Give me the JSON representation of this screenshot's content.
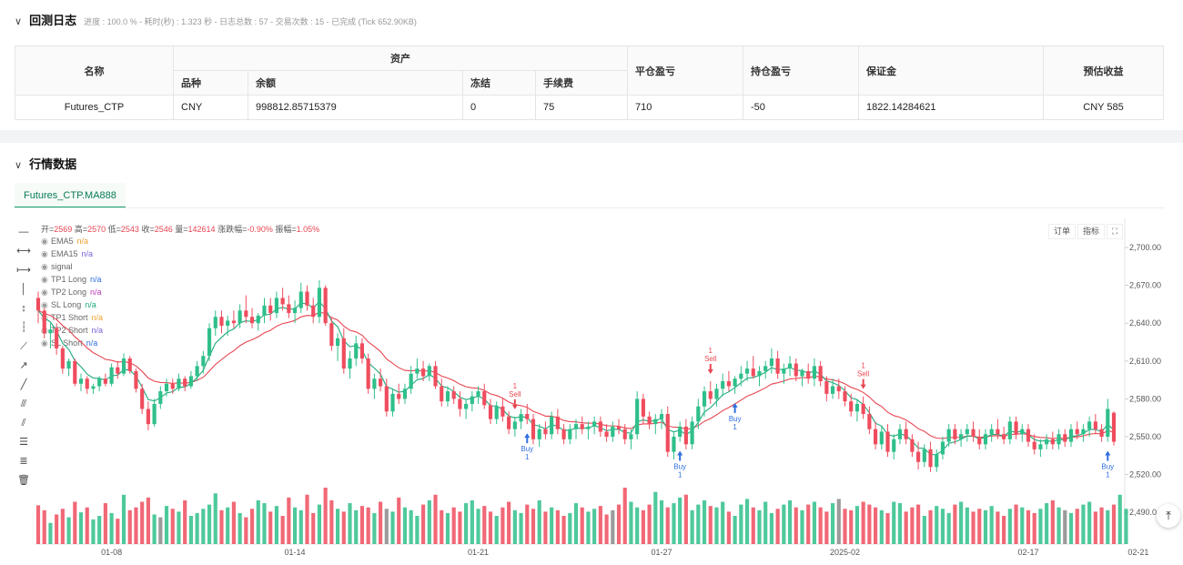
{
  "backtest_log": {
    "title": "回测日志",
    "status": "进度 : 100.0 % - 耗时(秒) : 1.323 秒 - 日志总数 : 57 - 交易次数 : 15 - 已完成 (Tick 652.90KB)",
    "table": {
      "headers": {
        "name": "名称",
        "assets": "资产",
        "variety": "品种",
        "balance": "余额",
        "frozen": "冻结",
        "fee": "手续费",
        "close_pnl": "平仓盈亏",
        "position_pnl": "持仓盈亏",
        "margin": "保证金",
        "est_profit": "预估收益"
      },
      "row": {
        "name": "Futures_CTP",
        "variety": "CNY",
        "balance": "998812.85715379",
        "frozen": "0",
        "fee": "75",
        "close_pnl": "710",
        "position_pnl": "-50",
        "margin": "1822.14284621",
        "est_profit": "CNY 585"
      }
    }
  },
  "market": {
    "title": "行情数据",
    "tab": "Futures_CTP.MA888",
    "ohlc": {
      "open_label": "开=",
      "open": "2569",
      "high_label": "高=",
      "high": "2570",
      "low_label": "低=",
      "low": "2543",
      "close_label": "收=",
      "close": "2546",
      "vol_label": "量=",
      "vol": "142614",
      "chg_label": "涨跌幅=",
      "chg": "-0.90%",
      "amp_label": "振幅=",
      "amp": "1.05%"
    },
    "legend": [
      {
        "name": "EMA5",
        "value": "n/a",
        "color": "#f0a030"
      },
      {
        "name": "EMA15",
        "value": "n/a",
        "color": "#7b5fd8"
      },
      {
        "name": "signal",
        "value": "",
        "color": "#666666"
      },
      {
        "name": "TP1 Long",
        "value": "n/a",
        "color": "#2f6fe0"
      },
      {
        "name": "TP2 Long",
        "value": "n/a",
        "color": "#c03bb8"
      },
      {
        "name": "SL Long",
        "value": "n/a",
        "color": "#1ea97c"
      },
      {
        "name": "TP1 Short",
        "value": "n/a",
        "color": "#f0a030"
      },
      {
        "name": "TP2 Short",
        "value": "n/a",
        "color": "#7b5fd8"
      },
      {
        "name": "SL Short",
        "value": "n/a",
        "color": "#2f6fe0"
      }
    ],
    "buttons": {
      "order": "订单",
      "indicator": "指标",
      "fullscreen": "⛶"
    },
    "tool_icons": [
      "horizontal-line-icon",
      "horizontal-ray-icon",
      "horizontal-segment-icon",
      "vertical-line-icon",
      "vertical-ray-icon",
      "vertical-segment-icon",
      "trend-line-icon",
      "ray-line-icon",
      "segment-line-icon",
      "price-channel-icon",
      "parallel-lines-icon",
      "fib-icon",
      "fib-levels-icon",
      "trash-icon"
    ]
  },
  "chart_data": {
    "type": "candlestick",
    "y_axis_labels": [
      "2,700.00",
      "2,670.00",
      "2,640.00",
      "2,610.00",
      "2,580.00",
      "2,550.00",
      "2,520.00",
      "2,490.0"
    ],
    "y_ticks": [
      2700,
      2670,
      2640,
      2610,
      2580,
      2550,
      2520,
      2490
    ],
    "ylim": [
      2480,
      2722
    ],
    "x_labels": [
      "01-08",
      "01-14",
      "01-21",
      "01-27",
      "2025-02",
      "02-17",
      "02-21"
    ],
    "x_label_index": [
      12,
      42,
      72,
      102,
      132,
      162,
      180
    ],
    "ema_colors": {
      "ema5": "#1ea97c",
      "ema15": "#e84652"
    },
    "up_color": "#2fbf8a",
    "down_color": "#ef4d5e",
    "neutral_color": "#8a8a8a",
    "candles": [
      [
        2660,
        2665,
        2640,
        2650
      ],
      [
        2650,
        2652,
        2628,
        2632
      ],
      [
        2632,
        2640,
        2620,
        2635
      ],
      [
        2636,
        2640,
        2615,
        2620
      ],
      [
        2620,
        2622,
        2600,
        2604
      ],
      [
        2604,
        2612,
        2598,
        2610
      ],
      [
        2610,
        2612,
        2590,
        2592
      ],
      [
        2592,
        2600,
        2586,
        2596
      ],
      [
        2596,
        2598,
        2584,
        2588
      ],
      [
        2588,
        2592,
        2584,
        2590
      ],
      [
        2590,
        2598,
        2586,
        2596
      ],
      [
        2596,
        2600,
        2590,
        2592
      ],
      [
        2592,
        2608,
        2590,
        2605
      ],
      [
        2605,
        2610,
        2596,
        2600
      ],
      [
        2600,
        2616,
        2598,
        2612
      ],
      [
        2612,
        2614,
        2600,
        2602
      ],
      [
        2602,
        2604,
        2585,
        2588
      ],
      [
        2588,
        2592,
        2568,
        2572
      ],
      [
        2572,
        2578,
        2555,
        2560
      ],
      [
        2560,
        2580,
        2558,
        2576
      ],
      [
        2576,
        2590,
        2572,
        2586
      ],
      [
        2586,
        2596,
        2582,
        2592
      ],
      [
        2592,
        2596,
        2584,
        2588
      ],
      [
        2588,
        2600,
        2586,
        2596
      ],
      [
        2596,
        2598,
        2586,
        2590
      ],
      [
        2590,
        2602,
        2588,
        2598
      ],
      [
        2598,
        2610,
        2594,
        2606
      ],
      [
        2606,
        2618,
        2600,
        2614
      ],
      [
        2614,
        2640,
        2610,
        2636
      ],
      [
        2636,
        2650,
        2630,
        2645
      ],
      [
        2645,
        2650,
        2632,
        2638
      ],
      [
        2638,
        2646,
        2630,
        2642
      ],
      [
        2642,
        2650,
        2636,
        2640
      ],
      [
        2640,
        2655,
        2636,
        2650
      ],
      [
        2650,
        2662,
        2640,
        2645
      ],
      [
        2645,
        2652,
        2636,
        2640
      ],
      [
        2640,
        2648,
        2634,
        2646
      ],
      [
        2646,
        2660,
        2640,
        2654
      ],
      [
        2654,
        2660,
        2642,
        2648
      ],
      [
        2648,
        2665,
        2644,
        2660
      ],
      [
        2660,
        2668,
        2650,
        2655
      ],
      [
        2655,
        2662,
        2644,
        2648
      ],
      [
        2648,
        2658,
        2640,
        2652
      ],
      [
        2652,
        2672,
        2648,
        2665
      ],
      [
        2665,
        2670,
        2650,
        2654
      ],
      [
        2654,
        2660,
        2640,
        2645
      ],
      [
        2645,
        2674,
        2640,
        2668
      ],
      [
        2668,
        2670,
        2638,
        2640
      ],
      [
        2640,
        2644,
        2618,
        2622
      ],
      [
        2622,
        2632,
        2610,
        2628
      ],
      [
        2628,
        2636,
        2600,
        2604
      ],
      [
        2604,
        2618,
        2596,
        2612
      ],
      [
        2612,
        2630,
        2606,
        2624
      ],
      [
        2624,
        2628,
        2608,
        2612
      ],
      [
        2612,
        2616,
        2584,
        2588
      ],
      [
        2588,
        2600,
        2580,
        2596
      ],
      [
        2596,
        2604,
        2586,
        2590
      ],
      [
        2590,
        2596,
        2566,
        2570
      ],
      [
        2570,
        2588,
        2566,
        2584
      ],
      [
        2584,
        2592,
        2576,
        2580
      ],
      [
        2580,
        2592,
        2576,
        2588
      ],
      [
        2588,
        2606,
        2584,
        2600
      ],
      [
        2600,
        2612,
        2596,
        2604
      ],
      [
        2604,
        2610,
        2594,
        2598
      ],
      [
        2598,
        2608,
        2594,
        2606
      ],
      [
        2606,
        2610,
        2588,
        2590
      ],
      [
        2590,
        2596,
        2574,
        2578
      ],
      [
        2578,
        2590,
        2574,
        2586
      ],
      [
        2586,
        2590,
        2576,
        2580
      ],
      [
        2580,
        2586,
        2566,
        2572
      ],
      [
        2572,
        2580,
        2564,
        2576
      ],
      [
        2576,
        2586,
        2570,
        2582
      ],
      [
        2582,
        2590,
        2576,
        2586
      ],
      [
        2586,
        2592,
        2572,
        2575
      ],
      [
        2575,
        2580,
        2560,
        2564
      ],
      [
        2564,
        2578,
        2560,
        2574
      ],
      [
        2574,
        2580,
        2562,
        2566
      ],
      [
        2566,
        2570,
        2552,
        2556
      ],
      [
        2556,
        2566,
        2550,
        2562
      ],
      [
        2562,
        2572,
        2556,
        2568
      ],
      [
        2568,
        2576,
        2560,
        2564
      ],
      [
        2564,
        2568,
        2544,
        2548
      ],
      [
        2548,
        2560,
        2542,
        2556
      ],
      [
        2556,
        2562,
        2548,
        2552
      ],
      [
        2552,
        2570,
        2548,
        2566
      ],
      [
        2566,
        2572,
        2552,
        2556
      ],
      [
        2556,
        2560,
        2544,
        2548
      ],
      [
        2548,
        2560,
        2544,
        2556
      ],
      [
        2556,
        2564,
        2548,
        2560
      ],
      [
        2560,
        2566,
        2552,
        2556
      ],
      [
        2556,
        2562,
        2548,
        2558
      ],
      [
        2558,
        2566,
        2552,
        2562
      ],
      [
        2562,
        2566,
        2550,
        2554
      ],
      [
        2554,
        2560,
        2546,
        2550
      ],
      [
        2550,
        2562,
        2546,
        2558
      ],
      [
        2558,
        2564,
        2552,
        2556
      ],
      [
        2556,
        2560,
        2544,
        2548
      ],
      [
        2548,
        2556,
        2540,
        2552
      ],
      [
        2552,
        2586,
        2548,
        2580
      ],
      [
        2580,
        2584,
        2560,
        2566
      ],
      [
        2566,
        2570,
        2556,
        2560
      ],
      [
        2560,
        2568,
        2552,
        2564
      ],
      [
        2564,
        2572,
        2556,
        2568
      ],
      [
        2568,
        2574,
        2534,
        2538
      ],
      [
        2538,
        2554,
        2532,
        2550
      ],
      [
        2550,
        2562,
        2546,
        2558
      ],
      [
        2558,
        2564,
        2540,
        2544
      ],
      [
        2544,
        2566,
        2540,
        2562
      ],
      [
        2562,
        2580,
        2556,
        2574
      ],
      [
        2574,
        2590,
        2566,
        2586
      ],
      [
        2586,
        2594,
        2576,
        2580
      ],
      [
        2580,
        2592,
        2574,
        2588
      ],
      [
        2588,
        2600,
        2582,
        2594
      ],
      [
        2594,
        2602,
        2586,
        2590
      ],
      [
        2590,
        2598,
        2584,
        2596
      ],
      [
        2596,
        2606,
        2590,
        2600
      ],
      [
        2600,
        2610,
        2594,
        2604
      ],
      [
        2604,
        2614,
        2596,
        2598
      ],
      [
        2598,
        2606,
        2590,
        2602
      ],
      [
        2602,
        2610,
        2596,
        2606
      ],
      [
        2606,
        2620,
        2600,
        2612
      ],
      [
        2612,
        2618,
        2596,
        2600
      ],
      [
        2600,
        2608,
        2592,
        2604
      ],
      [
        2604,
        2614,
        2598,
        2608
      ],
      [
        2608,
        2612,
        2594,
        2598
      ],
      [
        2598,
        2604,
        2590,
        2602
      ],
      [
        2602,
        2608,
        2592,
        2596
      ],
      [
        2596,
        2612,
        2590,
        2606
      ],
      [
        2606,
        2610,
        2590,
        2594
      ],
      [
        2594,
        2598,
        2578,
        2584
      ],
      [
        2584,
        2596,
        2580,
        2590
      ],
      [
        2590,
        2596,
        2580,
        2586
      ],
      [
        2586,
        2590,
        2574,
        2578
      ],
      [
        2578,
        2584,
        2566,
        2570
      ],
      [
        2570,
        2580,
        2562,
        2576
      ],
      [
        2576,
        2582,
        2564,
        2568
      ],
      [
        2568,
        2574,
        2552,
        2556
      ],
      [
        2556,
        2562,
        2540,
        2544
      ],
      [
        2544,
        2558,
        2540,
        2554
      ],
      [
        2554,
        2560,
        2534,
        2538
      ],
      [
        2538,
        2552,
        2532,
        2548
      ],
      [
        2548,
        2560,
        2544,
        2556
      ],
      [
        2556,
        2562,
        2544,
        2548
      ],
      [
        2548,
        2552,
        2534,
        2538
      ],
      [
        2538,
        2546,
        2524,
        2530
      ],
      [
        2530,
        2544,
        2526,
        2540
      ],
      [
        2540,
        2546,
        2522,
        2526
      ],
      [
        2526,
        2540,
        2522,
        2536
      ],
      [
        2536,
        2550,
        2532,
        2546
      ],
      [
        2546,
        2560,
        2542,
        2556
      ],
      [
        2556,
        2560,
        2544,
        2548
      ],
      [
        2548,
        2556,
        2542,
        2552
      ],
      [
        2552,
        2560,
        2546,
        2556
      ],
      [
        2556,
        2562,
        2546,
        2550
      ],
      [
        2550,
        2556,
        2540,
        2544
      ],
      [
        2544,
        2556,
        2540,
        2552
      ],
      [
        2552,
        2560,
        2546,
        2556
      ],
      [
        2556,
        2564,
        2548,
        2552
      ],
      [
        2552,
        2558,
        2544,
        2548
      ],
      [
        2548,
        2566,
        2544,
        2562
      ],
      [
        2562,
        2566,
        2548,
        2552
      ],
      [
        2552,
        2560,
        2546,
        2556
      ],
      [
        2556,
        2560,
        2542,
        2546
      ],
      [
        2546,
        2552,
        2536,
        2540
      ],
      [
        2540,
        2548,
        2534,
        2544
      ],
      [
        2544,
        2552,
        2540,
        2548
      ],
      [
        2548,
        2554,
        2540,
        2544
      ],
      [
        2544,
        2556,
        2540,
        2552
      ],
      [
        2552,
        2556,
        2542,
        2546
      ],
      [
        2546,
        2560,
        2542,
        2556
      ],
      [
        2556,
        2562,
        2548,
        2552
      ],
      [
        2552,
        2560,
        2546,
        2556
      ],
      [
        2556,
        2566,
        2550,
        2562
      ],
      [
        2562,
        2568,
        2552,
        2556
      ],
      [
        2556,
        2560,
        2546,
        2550
      ],
      [
        2550,
        2580,
        2546,
        2572
      ],
      [
        2569,
        2570,
        2543,
        2546
      ]
    ],
    "volumes": [
      55,
      48,
      30,
      42,
      50,
      38,
      60,
      45,
      52,
      35,
      40,
      58,
      44,
      36,
      70,
      48,
      52,
      60,
      66,
      42,
      38,
      54,
      50,
      46,
      62,
      40,
      44,
      50,
      56,
      72,
      48,
      52,
      60,
      44,
      38,
      50,
      62,
      58,
      46,
      54,
      40,
      66,
      52,
      48,
      70,
      44,
      56,
      80,
      62,
      50,
      46,
      58,
      48,
      54,
      52,
      44,
      60,
      50,
      46,
      66,
      52,
      48,
      40,
      56,
      62,
      70,
      48,
      44,
      52,
      46,
      58,
      62,
      50,
      54,
      46,
      40,
      52,
      60,
      48,
      44,
      56,
      50,
      62,
      46,
      52,
      48,
      40,
      44,
      58,
      52,
      46,
      50,
      54,
      42,
      48,
      56,
      80,
      60,
      52,
      48,
      56,
      74,
      62,
      52,
      58,
      66,
      70,
      48,
      56,
      62,
      54,
      52,
      60,
      46,
      40,
      56,
      64,
      52,
      48,
      60,
      44,
      50,
      56,
      62,
      52,
      48,
      56,
      60,
      52,
      46,
      58,
      64,
      50,
      48,
      54,
      60,
      56,
      52,
      48,
      44,
      60,
      58,
      46,
      52,
      56,
      40,
      48,
      54,
      50,
      44,
      56,
      60,
      52,
      46,
      50,
      48,
      54,
      46,
      40,
      50,
      56,
      52,
      48,
      44,
      50,
      58,
      62,
      52,
      48,
      44,
      50,
      56,
      60,
      46,
      52,
      48,
      56,
      70,
      50
    ],
    "buy_markers": [
      {
        "index": 80,
        "label": "Buy",
        "count": "1"
      },
      {
        "index": 105,
        "label": "Buy",
        "count": "1"
      },
      {
        "index": 114,
        "label": "Buy",
        "count": "1"
      },
      {
        "index": 175,
        "label": "Buy",
        "count": "1"
      }
    ],
    "sell_markers": [
      {
        "index": 78,
        "label": "Sell",
        "count": "1"
      },
      {
        "index": 110,
        "label": "Sell",
        "count": "1"
      },
      {
        "index": 135,
        "label": "Sell",
        "count": "1"
      }
    ]
  }
}
